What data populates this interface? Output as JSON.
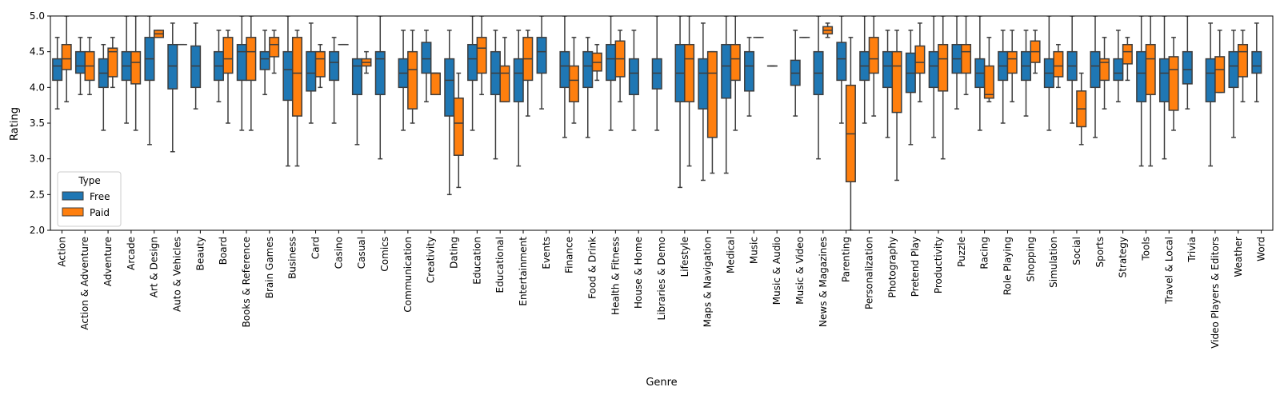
{
  "chart_data": {
    "type": "box",
    "xlabel": "Genre",
    "ylabel": "Rating",
    "ylim": [
      2.0,
      5.0
    ],
    "yticks": [
      2.0,
      2.5,
      3.0,
      3.5,
      4.0,
      4.5,
      5.0
    ],
    "grid": false,
    "legend": {
      "title": "Type",
      "placement": "lower-left"
    },
    "series": [
      {
        "name": "Free",
        "color": "#1f77b4"
      },
      {
        "name": "Paid",
        "color": "#ff7f0e"
      }
    ],
    "categories": [
      {
        "genre": "Action",
        "Free": [
          3.7,
          4.1,
          4.3,
          4.4,
          4.7
        ],
        "Paid": [
          3.8,
          4.25,
          4.4,
          4.6,
          5.0
        ]
      },
      {
        "genre": "Action & Adventure",
        "Free": [
          3.9,
          4.2,
          4.3,
          4.5,
          4.7
        ],
        "Paid": [
          3.9,
          4.1,
          4.3,
          4.5,
          4.7
        ]
      },
      {
        "genre": "Adventure",
        "Free": [
          3.4,
          4.0,
          4.2,
          4.4,
          4.6
        ],
        "Paid": [
          4.0,
          4.15,
          4.5,
          4.55,
          4.7
        ]
      },
      {
        "genre": "Arcade",
        "Free": [
          3.5,
          4.1,
          4.3,
          4.5,
          5.0
        ],
        "Paid": [
          3.4,
          4.05,
          4.35,
          4.5,
          5.0
        ]
      },
      {
        "genre": "Art & Design",
        "Free": [
          3.2,
          4.1,
          4.4,
          4.7,
          5.0
        ],
        "Paid": [
          4.7,
          4.7,
          4.75,
          4.8,
          4.8
        ]
      },
      {
        "genre": "Auto & Vehicles",
        "Free": [
          3.1,
          3.98,
          4.3,
          4.6,
          4.9
        ],
        "Paid": [
          4.6,
          4.6,
          4.6,
          4.6,
          4.6
        ]
      },
      {
        "genre": "Beauty",
        "Free": [
          3.7,
          4.0,
          4.3,
          4.58,
          4.9
        ],
        "Paid": null
      },
      {
        "genre": "Board",
        "Free": [
          3.8,
          4.1,
          4.3,
          4.5,
          4.8
        ],
        "Paid": [
          3.5,
          4.2,
          4.4,
          4.7,
          4.8
        ]
      },
      {
        "genre": "Books & Reference",
        "Free": [
          3.4,
          4.1,
          4.5,
          4.6,
          5.0
        ],
        "Paid": [
          3.4,
          4.1,
          4.5,
          4.7,
          5.0
        ]
      },
      {
        "genre": "Brain Games",
        "Free": [
          3.9,
          4.25,
          4.4,
          4.5,
          4.8
        ],
        "Paid": [
          4.2,
          4.43,
          4.6,
          4.7,
          4.8
        ]
      },
      {
        "genre": "Business",
        "Free": [
          2.9,
          3.82,
          4.25,
          4.5,
          5.0
        ],
        "Paid": [
          2.9,
          3.6,
          4.2,
          4.7,
          4.8
        ]
      },
      {
        "genre": "Card",
        "Free": [
          3.5,
          3.95,
          4.2,
          4.5,
          4.9
        ],
        "Paid": [
          4.0,
          4.15,
          4.4,
          4.5,
          4.6
        ]
      },
      {
        "genre": "Casino",
        "Free": [
          3.5,
          4.1,
          4.35,
          4.5,
          4.7
        ],
        "Paid": [
          4.6,
          4.6,
          4.6,
          4.6,
          4.6
        ]
      },
      {
        "genre": "Casual",
        "Free": [
          3.2,
          3.9,
          4.3,
          4.4,
          5.0
        ],
        "Paid": [
          4.2,
          4.3,
          4.35,
          4.4,
          4.5
        ]
      },
      {
        "genre": "Comics",
        "Free": [
          3.0,
          3.9,
          4.4,
          4.5,
          5.0
        ],
        "Paid": null
      },
      {
        "genre": "Communication",
        "Free": [
          3.4,
          4.0,
          4.2,
          4.4,
          4.8
        ],
        "Paid": [
          3.5,
          3.7,
          4.25,
          4.5,
          4.8
        ]
      },
      {
        "genre": "Creativity",
        "Free": [
          3.8,
          4.2,
          4.4,
          4.63,
          4.8
        ],
        "Paid": [
          3.9,
          3.9,
          4.2,
          4.2,
          4.2
        ]
      },
      {
        "genre": "Dating",
        "Free": [
          2.5,
          3.6,
          4.1,
          4.4,
          4.8
        ],
        "Paid": [
          2.6,
          3.05,
          3.5,
          3.85,
          4.2
        ]
      },
      {
        "genre": "Education",
        "Free": [
          3.4,
          4.1,
          4.4,
          4.6,
          5.0
        ],
        "Paid": [
          3.9,
          4.2,
          4.55,
          4.7,
          5.0
        ]
      },
      {
        "genre": "Educational",
        "Free": [
          3.0,
          3.9,
          4.2,
          4.5,
          4.8
        ],
        "Paid": [
          3.8,
          3.8,
          4.2,
          4.3,
          4.7
        ]
      },
      {
        "genre": "Entertainment",
        "Free": [
          2.9,
          3.8,
          4.2,
          4.4,
          4.8
        ],
        "Paid": [
          3.6,
          4.1,
          4.4,
          4.7,
          4.8
        ]
      },
      {
        "genre": "Events",
        "Free": [
          3.7,
          4.2,
          4.5,
          4.7,
          5.0
        ],
        "Paid": null
      },
      {
        "genre": "Finance",
        "Free": [
          3.3,
          4.0,
          4.3,
          4.5,
          5.0
        ],
        "Paid": [
          3.5,
          3.8,
          4.1,
          4.3,
          4.7
        ]
      },
      {
        "genre": "Food & Drink",
        "Free": [
          3.3,
          4.0,
          4.3,
          4.5,
          4.7
        ],
        "Paid": [
          4.1,
          4.23,
          4.35,
          4.48,
          4.6
        ]
      },
      {
        "genre": "Health & Fitness",
        "Free": [
          3.4,
          4.1,
          4.4,
          4.6,
          5.0
        ],
        "Paid": [
          3.8,
          4.15,
          4.4,
          4.65,
          4.8
        ]
      },
      {
        "genre": "House & Home",
        "Free": [
          3.4,
          3.9,
          4.2,
          4.4,
          4.8
        ],
        "Paid": null
      },
      {
        "genre": "Libraries & Demo",
        "Free": [
          3.4,
          3.98,
          4.2,
          4.4,
          5.0
        ],
        "Paid": null
      },
      {
        "genre": "Lifestyle",
        "Free": [
          2.6,
          3.8,
          4.2,
          4.6,
          5.0
        ],
        "Paid": [
          2.9,
          3.8,
          4.4,
          4.6,
          5.0
        ]
      },
      {
        "genre": "Maps & Navigation",
        "Free": [
          2.7,
          3.7,
          4.2,
          4.4,
          4.9
        ],
        "Paid": [
          2.8,
          3.3,
          4.2,
          4.5,
          4.5
        ]
      },
      {
        "genre": "Medical",
        "Free": [
          2.8,
          3.85,
          4.3,
          4.6,
          5.0
        ],
        "Paid": [
          3.4,
          4.1,
          4.4,
          4.6,
          5.0
        ]
      },
      {
        "genre": "Music",
        "Free": [
          3.6,
          3.95,
          4.3,
          4.5,
          4.7
        ],
        "Paid": [
          4.7,
          4.7,
          4.7,
          4.7,
          4.7
        ]
      },
      {
        "genre": "Music & Audio",
        "Free": [
          4.3,
          4.3,
          4.3,
          4.3,
          4.3
        ],
        "Paid": null
      },
      {
        "genre": "Music & Video",
        "Free": [
          3.6,
          4.03,
          4.2,
          4.38,
          4.8
        ],
        "Paid": [
          4.7,
          4.7,
          4.7,
          4.7,
          4.7
        ]
      },
      {
        "genre": "News & Magazines",
        "Free": [
          3.0,
          3.9,
          4.2,
          4.5,
          5.0
        ],
        "Paid": [
          4.7,
          4.75,
          4.8,
          4.85,
          4.9
        ]
      },
      {
        "genre": "Parenting",
        "Free": [
          3.5,
          4.1,
          4.4,
          4.63,
          5.0
        ],
        "Paid": [
          2.0,
          2.68,
          3.35,
          4.03,
          4.7
        ]
      },
      {
        "genre": "Personalization",
        "Free": [
          3.5,
          4.1,
          4.3,
          4.5,
          5.0
        ],
        "Paid": [
          3.6,
          4.2,
          4.4,
          4.7,
          5.0
        ]
      },
      {
        "genre": "Photography",
        "Free": [
          3.3,
          4.0,
          4.3,
          4.5,
          4.8
        ],
        "Paid": [
          2.7,
          3.65,
          4.3,
          4.5,
          4.8
        ]
      },
      {
        "genre": "Pretend Play",
        "Free": [
          3.2,
          3.93,
          4.2,
          4.48,
          4.8
        ],
        "Paid": [
          3.8,
          4.2,
          4.35,
          4.58,
          4.9
        ]
      },
      {
        "genre": "Productivity",
        "Free": [
          3.3,
          4.0,
          4.3,
          4.5,
          5.0
        ],
        "Paid": [
          3.0,
          3.95,
          4.4,
          4.6,
          5.0
        ]
      },
      {
        "genre": "Puzzle",
        "Free": [
          3.7,
          4.2,
          4.4,
          4.6,
          5.0
        ],
        "Paid": [
          3.9,
          4.2,
          4.5,
          4.6,
          5.0
        ]
      },
      {
        "genre": "Racing",
        "Free": [
          3.4,
          4.0,
          4.2,
          4.4,
          5.0
        ],
        "Paid": [
          3.8,
          3.85,
          3.9,
          4.3,
          4.7
        ]
      },
      {
        "genre": "Role Playing",
        "Free": [
          3.5,
          4.1,
          4.3,
          4.5,
          4.8
        ],
        "Paid": [
          3.8,
          4.2,
          4.4,
          4.5,
          4.8
        ]
      },
      {
        "genre": "Shopping",
        "Free": [
          3.6,
          4.1,
          4.3,
          4.5,
          4.8
        ],
        "Paid": [
          4.2,
          4.35,
          4.5,
          4.65,
          4.8
        ]
      },
      {
        "genre": "Simulation",
        "Free": [
          3.4,
          4.0,
          4.2,
          4.4,
          5.0
        ],
        "Paid": [
          4.0,
          4.15,
          4.3,
          4.5,
          4.6
        ]
      },
      {
        "genre": "Social",
        "Free": [
          3.5,
          4.1,
          4.3,
          4.5,
          5.0
        ],
        "Paid": [
          3.2,
          3.45,
          3.7,
          3.95,
          4.2
        ]
      },
      {
        "genre": "Sports",
        "Free": [
          3.3,
          4.0,
          4.3,
          4.5,
          5.0
        ],
        "Paid": [
          3.7,
          4.1,
          4.35,
          4.4,
          4.7
        ]
      },
      {
        "genre": "Strategy",
        "Free": [
          3.8,
          4.1,
          4.2,
          4.4,
          4.8
        ],
        "Paid": [
          4.1,
          4.33,
          4.5,
          4.6,
          4.7
        ]
      },
      {
        "genre": "Tools",
        "Free": [
          2.9,
          3.8,
          4.2,
          4.5,
          5.0
        ],
        "Paid": [
          2.9,
          3.9,
          4.4,
          4.6,
          5.0
        ]
      },
      {
        "genre": "Travel & Local",
        "Free": [
          3.0,
          3.8,
          4.2,
          4.4,
          5.0
        ],
        "Paid": [
          3.4,
          3.68,
          4.25,
          4.43,
          4.7
        ]
      },
      {
        "genre": "Trivia",
        "Free": [
          3.7,
          4.05,
          4.25,
          4.5,
          5.0
        ],
        "Paid": null
      },
      {
        "genre": "Video Players & Editors",
        "Free": [
          2.9,
          3.8,
          4.2,
          4.4,
          4.9
        ],
        "Paid": [
          3.93,
          3.93,
          4.25,
          4.43,
          4.8
        ]
      },
      {
        "genre": "Weather",
        "Free": [
          3.3,
          4.0,
          4.3,
          4.5,
          4.8
        ],
        "Paid": [
          3.8,
          4.15,
          4.5,
          4.6,
          4.8
        ]
      },
      {
        "genre": "Word",
        "Free": [
          3.8,
          4.2,
          4.3,
          4.5,
          4.9
        ],
        "Paid": null
      }
    ]
  }
}
